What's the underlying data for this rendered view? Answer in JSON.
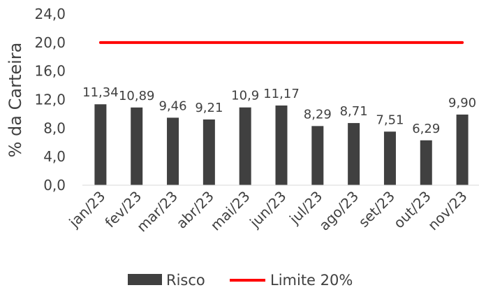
{
  "chart_data": {
    "type": "bar",
    "title": "",
    "xlabel": "",
    "ylabel": "% da Carteira",
    "ylim": [
      0,
      24
    ],
    "yticks": [
      "0,0",
      "4,0",
      "8,0",
      "12,0",
      "16,0",
      "20,0",
      "24,0"
    ],
    "categories": [
      "jan/23",
      "fev/23",
      "mar/23",
      "abr/23",
      "mai/23",
      "jun/23",
      "jul/23",
      "ago/23",
      "set/23",
      "out/23",
      "nov/23"
    ],
    "series": [
      {
        "name": "Risco",
        "type": "bar",
        "color": "#404040",
        "values": [
          11.34,
          10.89,
          9.46,
          9.21,
          10.9,
          11.17,
          8.29,
          8.71,
          7.51,
          6.29,
          9.9
        ],
        "labels": [
          "11,34",
          "10,89",
          "9,46",
          "9,21",
          "10,9",
          "11,17",
          "8,29",
          "8,71",
          "7,51",
          "6,29",
          "9,90"
        ]
      },
      {
        "name": "Limite 20%",
        "type": "line",
        "color": "#ff0000",
        "values": [
          20,
          20,
          20,
          20,
          20,
          20,
          20,
          20,
          20,
          20,
          20
        ]
      }
    ],
    "grid": false,
    "legend_position": "bottom"
  }
}
